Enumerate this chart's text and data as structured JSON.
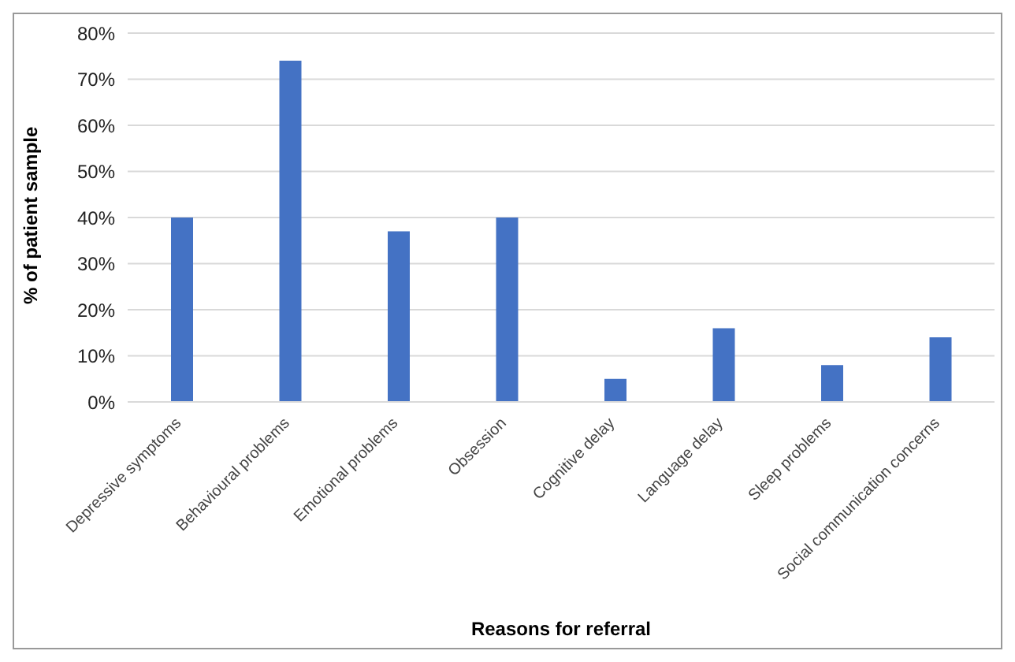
{
  "chart_data": {
    "type": "bar",
    "xlabel": "Reasons for referral",
    "ylabel": "% of patient sample",
    "categories": [
      "Depressive symptoms",
      "Behavioural problems",
      "Emotional problems",
      "Obsession",
      "Cognitive delay",
      "Language delay",
      "Sleep problems",
      "Social communication concerns"
    ],
    "values": [
      40,
      74,
      37,
      40,
      5,
      16,
      8,
      14
    ],
    "color": "#4472c4",
    "ylim": [
      0,
      80
    ],
    "yticks": [
      {
        "value": 0,
        "label": "0%"
      },
      {
        "value": 10,
        "label": "10%"
      },
      {
        "value": 20,
        "label": "20%"
      },
      {
        "value": 30,
        "label": "30%"
      },
      {
        "value": 40,
        "label": "40%"
      },
      {
        "value": 50,
        "label": "50%"
      },
      {
        "value": 60,
        "label": "60%"
      },
      {
        "value": 70,
        "label": "70%"
      },
      {
        "value": 80,
        "label": "80%"
      }
    ],
    "grid": "y",
    "legend": false
  }
}
